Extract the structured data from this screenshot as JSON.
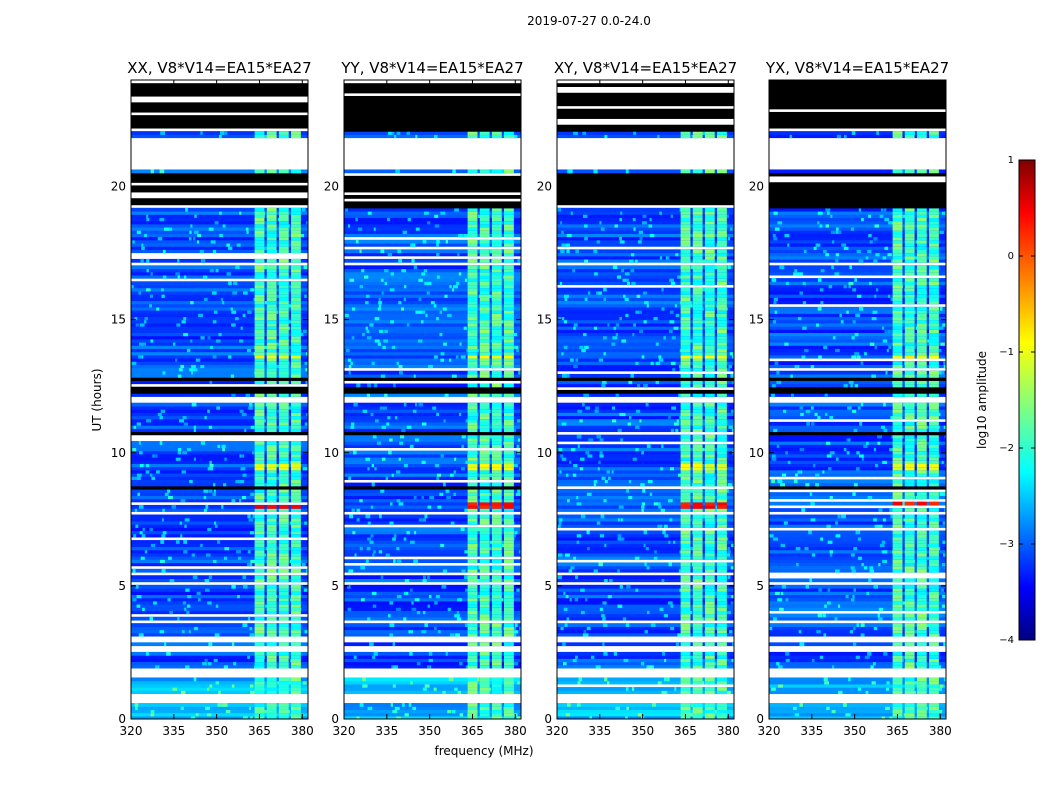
{
  "figure": {
    "suptitle": "2019-07-27 0.0-24.0"
  },
  "chart_data": {
    "type": "heatmap",
    "title": "2019-07-27 0.0-24.0",
    "xlabel": "frequency (MHz)",
    "ylabel": "UT (hours)",
    "xlim": [
      320,
      382
    ],
    "ylim": [
      0,
      24
    ],
    "x_ticks": [
      "320",
      "335",
      "350",
      "365",
      "380"
    ],
    "x_tick_values": [
      320,
      335,
      350,
      365,
      380
    ],
    "y_ticks": [
      "0",
      "5",
      "10",
      "15",
      "20"
    ],
    "y_tick_values": [
      0,
      5,
      10,
      15,
      20
    ],
    "panels": [
      {
        "id": "xx",
        "title": "XX, V8*V14=EA15*EA27"
      },
      {
        "id": "yy",
        "title": "YY, V8*V14=EA15*EA27"
      },
      {
        "id": "xy",
        "title": "XY, V8*V14=EA15*EA27"
      },
      {
        "id": "yx",
        "title": "YX, V8*V14=EA15*EA27"
      }
    ],
    "colorbar": {
      "label": "log10 amplitude",
      "range": [
        -4,
        1
      ],
      "ticks": [
        "1",
        "0",
        "−1",
        "−2",
        "−3",
        "−4"
      ],
      "tick_values": [
        1,
        0,
        -1,
        -2,
        -3,
        -4
      ],
      "colormap": "jet"
    },
    "flagged_ut_ranges": [
      [
        0.55,
        0.95
      ],
      [
        1.5,
        1.82
      ],
      [
        2.5,
        2.65
      ],
      [
        2.85,
        3.05
      ],
      [
        3.5,
        3.65
      ],
      [
        5.0,
        5.1
      ],
      [
        5.4,
        5.5
      ],
      [
        7.6,
        7.75
      ],
      [
        11.8,
        12.0
      ],
      [
        17.0,
        17.15
      ],
      [
        20.6,
        21.8
      ]
    ],
    "dropout_ut_ranges": [
      [
        8.6,
        8.7
      ],
      [
        10.6,
        10.7
      ],
      [
        12.2,
        12.4
      ],
      [
        12.6,
        12.8
      ],
      [
        19.1,
        20.5
      ],
      [
        22.0,
        24.0
      ]
    ],
    "bright_features": [
      {
        "ut": [
          7.85,
          8.15
        ],
        "freq": [
          363,
          380
        ],
        "log10_amplitude": 0.3
      },
      {
        "ut": [
          13.45,
          13.65
        ],
        "freq": [
          362,
          380
        ],
        "log10_amplitude": -0.9
      },
      {
        "ut": [
          9.35,
          9.55
        ],
        "freq": [
          362,
          380
        ],
        "log10_amplitude": -1.0
      }
    ],
    "background_log10_amplitude": -3.0,
    "rfi_band_freq": [
      363,
      380
    ],
    "rfi_band_log10_amplitude": -1.8
  }
}
